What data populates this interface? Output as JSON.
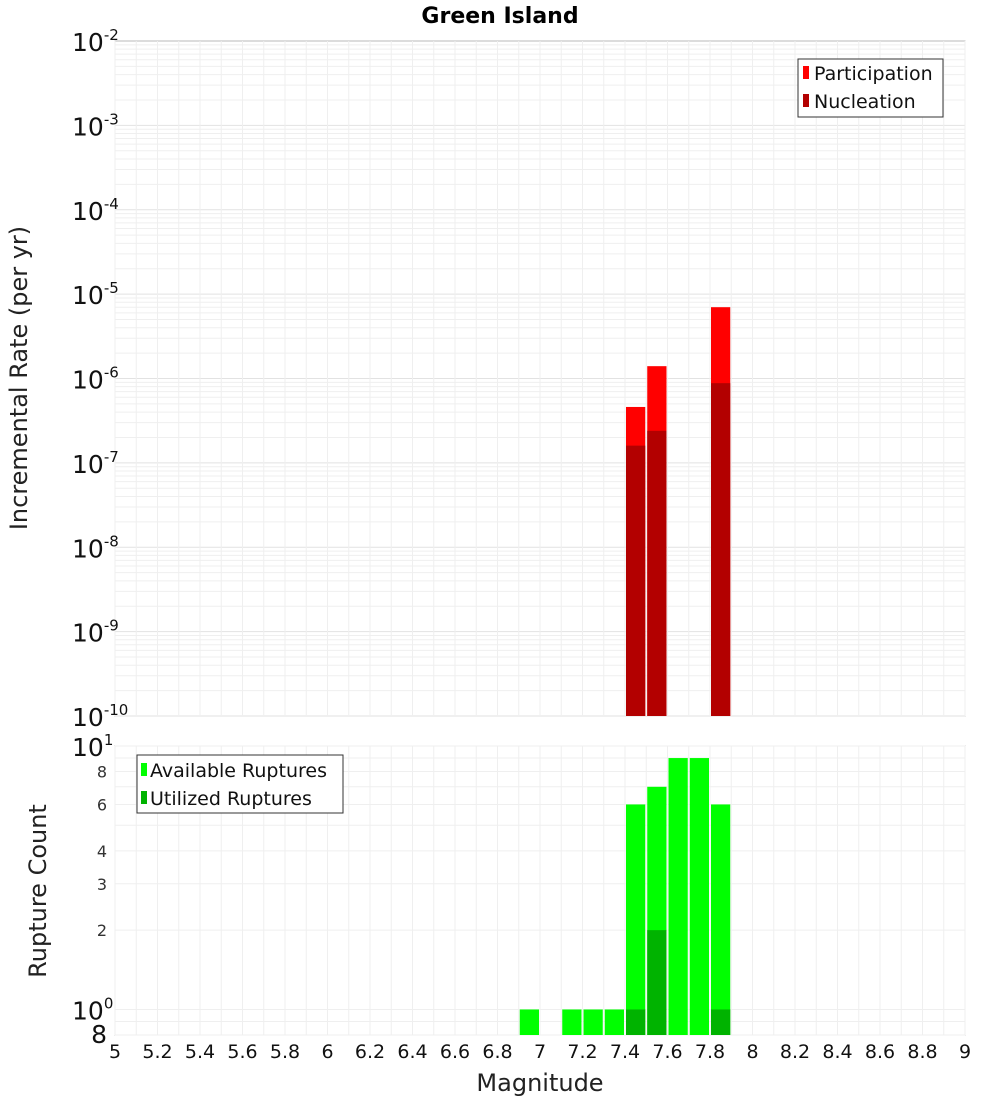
{
  "chart_data": [
    {
      "type": "bar",
      "title": "Green Island",
      "xlabel": "",
      "ylabel": "Incremental Rate (per yr)",
      "yscale": "log",
      "xlim": [
        5,
        9
      ],
      "ylim": [
        1e-10,
        0.01
      ],
      "grid": true,
      "legend_position": "top-right",
      "y_tick_labels": [
        {
          "base": "10",
          "exp": "-2"
        },
        {
          "base": "10",
          "exp": "-3"
        },
        {
          "base": "10",
          "exp": "-4"
        },
        {
          "base": "10",
          "exp": "-5"
        },
        {
          "base": "10",
          "exp": "-6"
        },
        {
          "base": "10",
          "exp": "-7"
        },
        {
          "base": "10",
          "exp": "-8"
        },
        {
          "base": "10",
          "exp": "-9"
        },
        {
          "base": "10",
          "exp": "-10"
        }
      ],
      "bin_width": 0.1,
      "series": [
        {
          "name": "Participation",
          "color": "#ff0000",
          "x": [
            7.45,
            7.55,
            7.85
          ],
          "values": [
            4.6e-07,
            1.4e-06,
            7e-06
          ]
        },
        {
          "name": "Nucleation",
          "color": "#b30000",
          "x": [
            7.45,
            7.55,
            7.85
          ],
          "values": [
            1.6e-07,
            2.4e-07,
            8.8e-07
          ]
        }
      ]
    },
    {
      "type": "bar",
      "xlabel": "Magnitude",
      "ylabel": "Rupture Count",
      "yscale": "log",
      "xlim": [
        5,
        9
      ],
      "ylim": [
        0.8,
        10
      ],
      "grid": true,
      "legend_position": "top-left",
      "x_tick_labels": [
        "5",
        "5.2",
        "5.4",
        "5.6",
        "5.8",
        "6",
        "6.2",
        "6.4",
        "6.6",
        "6.8",
        "7",
        "7.2",
        "7.4",
        "7.6",
        "7.8",
        "8",
        "8.2",
        "8.4",
        "8.6",
        "8.8",
        "9"
      ],
      "y_tick_labels_small": [
        "8",
        "6",
        "4",
        "3",
        "2"
      ],
      "y_tick_label_top": {
        "base": "10",
        "exp": "1"
      },
      "y_tick_label_one": {
        "base": "10",
        "exp": "0"
      },
      "y_tick_label_bottom": "8",
      "bin_width": 0.1,
      "series": [
        {
          "name": "Available Ruptures",
          "color": "#00ff00",
          "x": [
            6.95,
            7.15,
            7.25,
            7.35,
            7.45,
            7.55,
            7.65,
            7.75,
            7.85
          ],
          "values": [
            1,
            1,
            1,
            1,
            6,
            7,
            9,
            9,
            6
          ]
        },
        {
          "name": "Utilized Ruptures",
          "color": "#00b300",
          "x": [
            7.45,
            7.55,
            7.85
          ],
          "values": [
            1,
            2,
            1
          ]
        }
      ]
    }
  ]
}
